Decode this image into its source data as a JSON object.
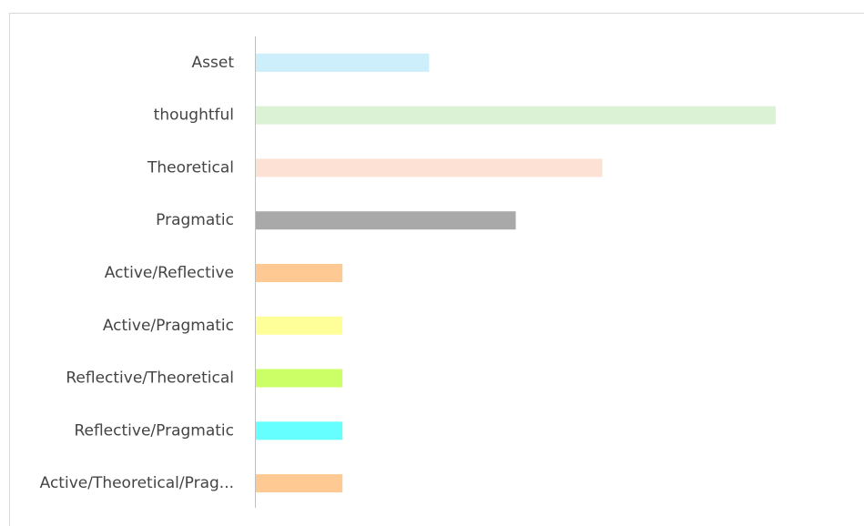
{
  "chart_data": {
    "type": "bar",
    "orientation": "horizontal",
    "categories": [
      "Asset",
      "thoughtful",
      "Theoretical",
      "Pragmatic",
      "Active/Reflective",
      "Active/Pragmatic",
      "Reflective/Theoretical",
      "Reflective/Pragmatic",
      "Active/Theoretical/Prag..."
    ],
    "values": [
      2,
      6,
      4,
      3,
      1,
      1,
      1,
      1,
      1
    ],
    "colors": [
      "#cdeefb",
      "#dcf2d4",
      "#fde1d5",
      "#a9a9a9",
      "#ffc993",
      "#ffff99",
      "#ccff66",
      "#66ffff",
      "#ffc993"
    ]
  }
}
